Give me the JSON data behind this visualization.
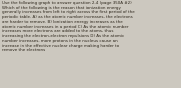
{
  "text": "Use the following graph to answer question 2-4 (page 350A #2)\nWhich of the following is the reason that ionization energy\ngenerally increases from left to right across the first period of the\nperiodic table. A) as the atomic number increases, the electrons\nare harder to remove. B) Ionization energy increases as the\natomic number increases in a period C) As the atomic number\nincreases more electrons are added to the atoms, thus\nincreasing the electron-electron repulsions D) As the atomic\nnumber increases, more protons in the nucleus cause an\nincrease in the effective nuclear charge making harder to\nremove the electrons",
  "bg_color": "#ccc8bf",
  "text_color": "#2a2318",
  "font_size": 2.85,
  "fig_width": 1.81,
  "fig_height": 0.88,
  "dpi": 100
}
